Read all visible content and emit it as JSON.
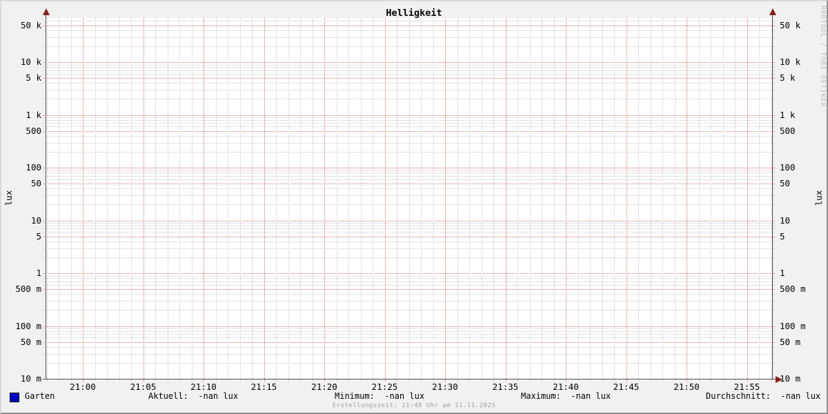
{
  "title": "Helligkeit",
  "watermark": "RRDTOOL / TOBI OETIKER",
  "footer": "Erstellungszeit: 21:48 Uhr am 11.11.2025",
  "y_axis": {
    "unit": "lux",
    "ticks": [
      {
        "value": 50000,
        "label": "50 k"
      },
      {
        "value": 10000,
        "label": "10 k"
      },
      {
        "value": 5000,
        "label": "5 k"
      },
      {
        "value": 1000,
        "label": "1 k"
      },
      {
        "value": 500,
        "label": "500"
      },
      {
        "value": 100,
        "label": "100"
      },
      {
        "value": 50,
        "label": "50"
      },
      {
        "value": 10,
        "label": "10"
      },
      {
        "value": 5,
        "label": "5"
      },
      {
        "value": 1,
        "label": "1"
      },
      {
        "value": 0.5,
        "label": "500 m"
      },
      {
        "value": 0.1,
        "label": "100 m"
      },
      {
        "value": 0.05,
        "label": "50 m"
      },
      {
        "value": 0.01,
        "label": "10 m"
      }
    ]
  },
  "x_axis": {
    "ticks": [
      {
        "minute": 0,
        "label": "21:00"
      },
      {
        "minute": 5,
        "label": "21:05"
      },
      {
        "minute": 10,
        "label": "21:10"
      },
      {
        "minute": 15,
        "label": "21:15"
      },
      {
        "minute": 20,
        "label": "21:20"
      },
      {
        "minute": 25,
        "label": "21:25"
      },
      {
        "minute": 30,
        "label": "21:30"
      },
      {
        "minute": 35,
        "label": "21:35"
      },
      {
        "minute": 40,
        "label": "21:40"
      },
      {
        "minute": 45,
        "label": "21:45"
      },
      {
        "minute": 50,
        "label": "21:50"
      },
      {
        "minute": 55,
        "label": "21:55"
      }
    ]
  },
  "legend": {
    "series_label": "Garten",
    "series_color": "#0000c8",
    "stats": [
      {
        "name": "aktuell",
        "text": "Aktuell:  -nan lux"
      },
      {
        "name": "minimum",
        "text": "Minimum:  -nan lux"
      },
      {
        "name": "maximum",
        "text": "Maximum:  -nan lux"
      },
      {
        "name": "durchschnitt",
        "text": "Durchschnitt:  -nan lux"
      }
    ]
  },
  "chart_data": {
    "type": "line",
    "title": "Helligkeit",
    "ylabel": "lux",
    "y_scale": "log",
    "ylim": [
      0.01,
      70000
    ],
    "x_range": [
      "20:57",
      "21:57"
    ],
    "x_tick_labels": [
      "21:00",
      "21:05",
      "21:10",
      "21:15",
      "21:20",
      "21:25",
      "21:30",
      "21:35",
      "21:40",
      "21:45",
      "21:50",
      "21:55"
    ],
    "y_tick_labels": [
      "50 k",
      "10 k",
      "5 k",
      "1 k",
      "500",
      "100",
      "50",
      "10",
      "5",
      "1",
      "500 m",
      "100 m",
      "50 m",
      "10 m"
    ],
    "grid": true,
    "legend_position": "bottom",
    "series": [
      {
        "name": "Garten",
        "color": "#0000c8",
        "values": [],
        "note": "no data drawn, all values NaN"
      }
    ],
    "stats": {
      "aktuell": "-nan lux",
      "minimum": "-nan lux",
      "maximum": "-nan lux",
      "durchschnitt": "-nan lux"
    }
  }
}
